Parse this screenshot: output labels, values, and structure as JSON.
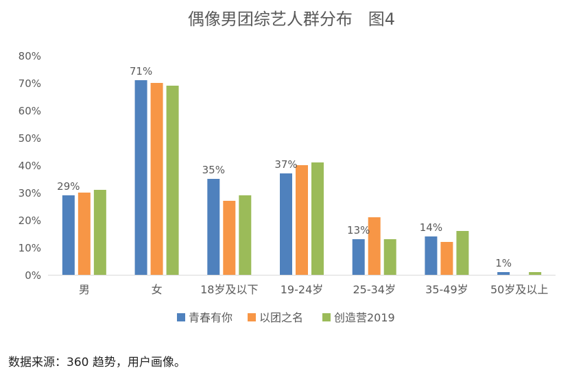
{
  "title": "偶像男团综艺人群分布   图4",
  "source": "数据来源：360 趋势，用户画像。",
  "colors": {
    "axis_text": "#595959",
    "axis_line": "#d9d9d9"
  },
  "chart_data": {
    "type": "bar",
    "categories": [
      "男",
      "女",
      "18岁及以下",
      "19-24岁",
      "25-34岁",
      "35-49岁",
      "50岁及以上"
    ],
    "ylim": [
      0,
      80
    ],
    "ytick_labels": [
      "0%",
      "10%",
      "20%",
      "30%",
      "40%",
      "50%",
      "60%",
      "70%",
      "80%"
    ],
    "grid": false,
    "legend_position": "bottom",
    "series": [
      {
        "name": "青春有你",
        "color": "#4f81bd",
        "values": [
          29,
          71,
          35,
          37,
          13,
          14,
          1
        ]
      },
      {
        "name": "以团之名",
        "color": "#f79646",
        "values": [
          30,
          70,
          27,
          40,
          21,
          12,
          0
        ]
      },
      {
        "name": "创造营2019",
        "color": "#9bbb59",
        "values": [
          31,
          69,
          29,
          41,
          13,
          16,
          1
        ]
      }
    ],
    "data_labels": [
      {
        "series": 0,
        "category": 0,
        "text": "29%"
      },
      {
        "series": 0,
        "category": 1,
        "text": "71%"
      },
      {
        "series": 0,
        "category": 2,
        "text": "35%"
      },
      {
        "series": 0,
        "category": 3,
        "text": "37%"
      },
      {
        "series": 0,
        "category": 4,
        "text": "13%"
      },
      {
        "series": 0,
        "category": 5,
        "text": "14%"
      },
      {
        "series": 0,
        "category": 6,
        "text": "1%"
      }
    ]
  }
}
